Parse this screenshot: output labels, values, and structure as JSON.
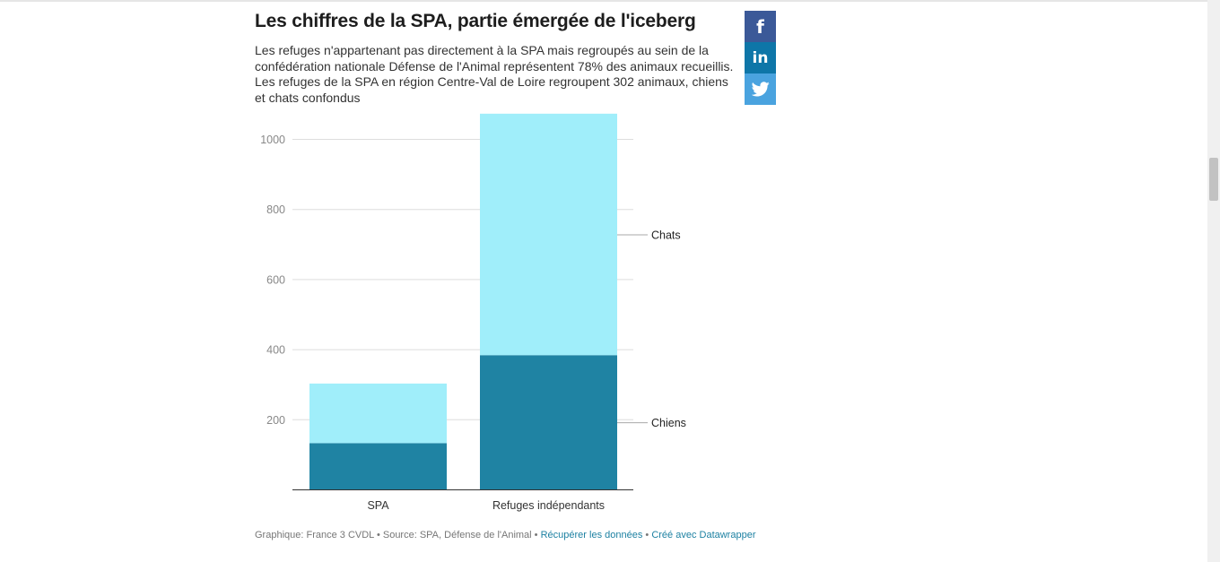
{
  "header": {
    "title": "Les chiffres de la SPA, partie émergée de l'iceberg",
    "description": "Les refuges n'appartenant pas directement à la SPA mais regroupés au sein de la confédération nationale Défense de l'Animal représentent 78% des animaux recueillis. Les refuges de la SPA en région Centre-Val de Loire regroupent 302 animaux, chiens et chats confondus"
  },
  "share": {
    "facebook_glyph": "f",
    "linkedin_glyph": "in",
    "twitter_icon": "twitter-bird-icon"
  },
  "chart_data": {
    "type": "bar",
    "stacked": true,
    "title": "Les chiffres de la SPA, partie émergée de l'iceberg",
    "categories": [
      "SPA",
      "Refuges indépendants"
    ],
    "series": [
      {
        "name": "Chiens",
        "values": [
          132,
          383
        ],
        "color": "#1f83a3"
      },
      {
        "name": "Chats",
        "values": [
          170,
          689
        ],
        "color": "#a0eefa"
      }
    ],
    "y_ticks": [
      "200",
      "400",
      "600",
      "800",
      "1000"
    ],
    "ylim": [
      0,
      1100
    ],
    "xlabel": "",
    "ylabel": "",
    "legend": "direct labels to the right of the last bar"
  },
  "footer": {
    "credit": "Graphique: France 3 CVDL",
    "source": "Source: SPA, Défense de l'Animal",
    "separator": " • ",
    "data_link": "Récupérer les données",
    "datawrapper_link": "Créé avec Datawrapper"
  }
}
